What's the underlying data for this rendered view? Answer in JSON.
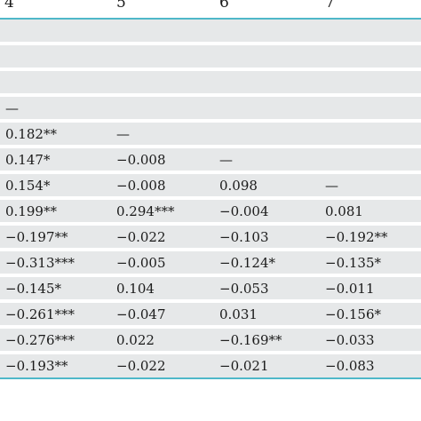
{
  "table": {
    "headers": [
      "4",
      "5",
      "6",
      "7"
    ],
    "rows": [
      [
        "",
        "",
        "",
        ""
      ],
      [
        "",
        "",
        "",
        ""
      ],
      [
        "",
        "",
        "",
        ""
      ],
      [
        "—",
        "",
        "",
        ""
      ],
      [
        "0.182**",
        "—",
        "",
        ""
      ],
      [
        "0.147*",
        "−0.008",
        "—",
        ""
      ],
      [
        "0.154*",
        "−0.008",
        "0.098",
        "—"
      ],
      [
        "0.199**",
        "0.294***",
        "−0.004",
        "0.081"
      ],
      [
        "−0.197**",
        "−0.022",
        "−0.103",
        "−0.192**"
      ],
      [
        "−0.313***",
        "−0.005",
        "−0.124*",
        "−0.135*"
      ],
      [
        "−0.145*",
        "0.104",
        "−0.053",
        "−0.011"
      ],
      [
        "−0.261***",
        "−0.047",
        "0.031",
        "−0.156*"
      ],
      [
        "−0.276***",
        "0.022",
        "−0.169**",
        "−0.033"
      ],
      [
        "−0.193**",
        "−0.022",
        "−0.021",
        "−0.083"
      ]
    ]
  }
}
